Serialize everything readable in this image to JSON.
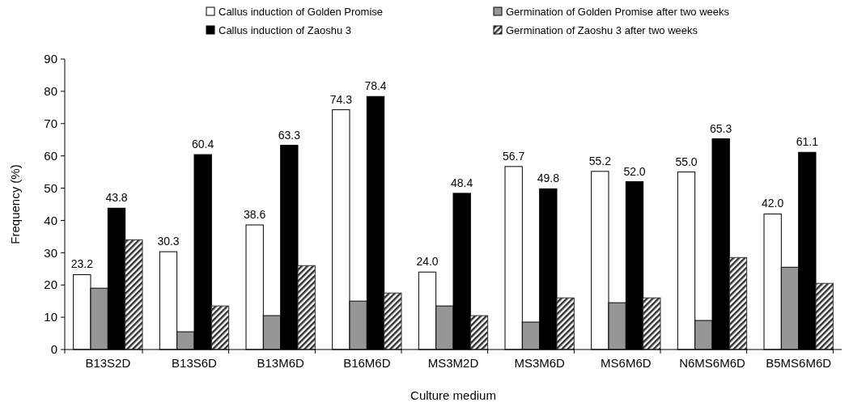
{
  "chart_data": {
    "type": "bar",
    "xlabel": "Culture medium",
    "ylabel": "Frequency (%)",
    "categories": [
      "B13S2D",
      "B13S6D",
      "B13M6D",
      "B16M6D",
      "MS3M2D",
      "MS3M6D",
      "MS6M6D",
      "N6MS6M6D",
      "B5MS6M6D"
    ],
    "ylim": [
      0,
      90
    ],
    "yticks": [
      0,
      10,
      20,
      30,
      40,
      50,
      60,
      70,
      80,
      90
    ],
    "grid": false,
    "legend": "top",
    "series": [
      {
        "name": "Callus induction of Golden Promise",
        "color": "#ffffff",
        "values": [
          23.2,
          30.3,
          38.6,
          74.3,
          24.0,
          56.7,
          55.2,
          55.0,
          42.0
        ],
        "value_labels": [
          "23.2",
          "30.3",
          "38.6",
          "74.3",
          "24.0",
          "56.7",
          "55.2",
          "55.0",
          "42.0"
        ]
      },
      {
        "name": "Germination of Golden Promise after two weeks",
        "color": "#969696",
        "values": [
          19,
          5.5,
          10.5,
          15,
          13.5,
          8.5,
          14.5,
          9,
          25.5
        ]
      },
      {
        "name": "Callus induction of Zaoshu 3",
        "color": "#000000",
        "values": [
          43.8,
          60.4,
          63.3,
          78.4,
          48.4,
          49.8,
          52.0,
          65.3,
          61.1
        ],
        "value_labels": [
          "43.8",
          "60.4",
          "63.3",
          "78.4",
          "48.4",
          "49.8",
          "52.0",
          "65.3",
          "61.1"
        ]
      },
      {
        "name": "Germination of Zaoshu 3 after two weeks",
        "color": "#333333",
        "values": [
          34,
          13.5,
          26,
          17.5,
          10.5,
          16,
          16,
          28.5,
          20.5
        ]
      }
    ]
  }
}
